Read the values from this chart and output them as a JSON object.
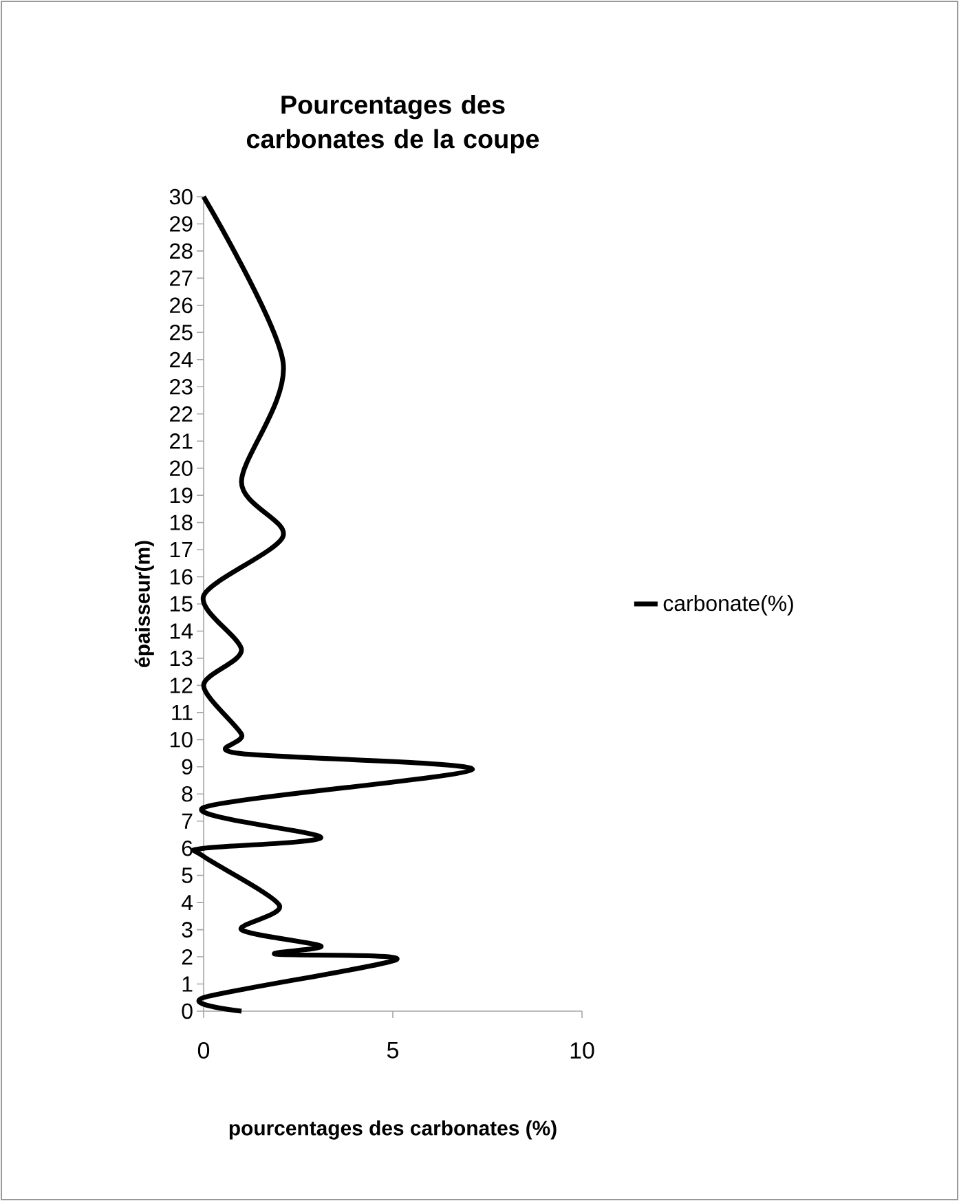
{
  "chart_data": {
    "type": "line",
    "title": "Pourcentages des carbonates de la coupe",
    "xlabel": "pourcentages des carbonates (%)",
    "ylabel": "épaisseur(m)",
    "xlim": [
      0,
      10
    ],
    "xticks": [
      0,
      5,
      10
    ],
    "ylim": [
      0,
      30
    ],
    "yticks": [
      0,
      1,
      2,
      3,
      4,
      5,
      6,
      7,
      8,
      9,
      10,
      11,
      12,
      13,
      14,
      15,
      16,
      17,
      18,
      19,
      20,
      21,
      22,
      23,
      24,
      25,
      26,
      27,
      28,
      29,
      30
    ],
    "legend": "right",
    "grid": false,
    "marker": "none",
    "series": [
      {
        "name": "carbonate(%)",
        "color": "#000000",
        "x": [
          1,
          0,
          5.1,
          1.9,
          3.1,
          1,
          2,
          0,
          0,
          3.1,
          0,
          7.1,
          0.9,
          1,
          0,
          1,
          0,
          2.1,
          1,
          2.1,
          0
        ],
        "values": [
          0,
          0.5,
          1.9,
          2.1,
          2.4,
          3,
          3.9,
          5.7,
          6,
          6.4,
          7.5,
          8.9,
          9.5,
          10.2,
          12,
          13.3,
          15.3,
          17.5,
          19.5,
          23.9,
          30
        ]
      }
    ]
  }
}
